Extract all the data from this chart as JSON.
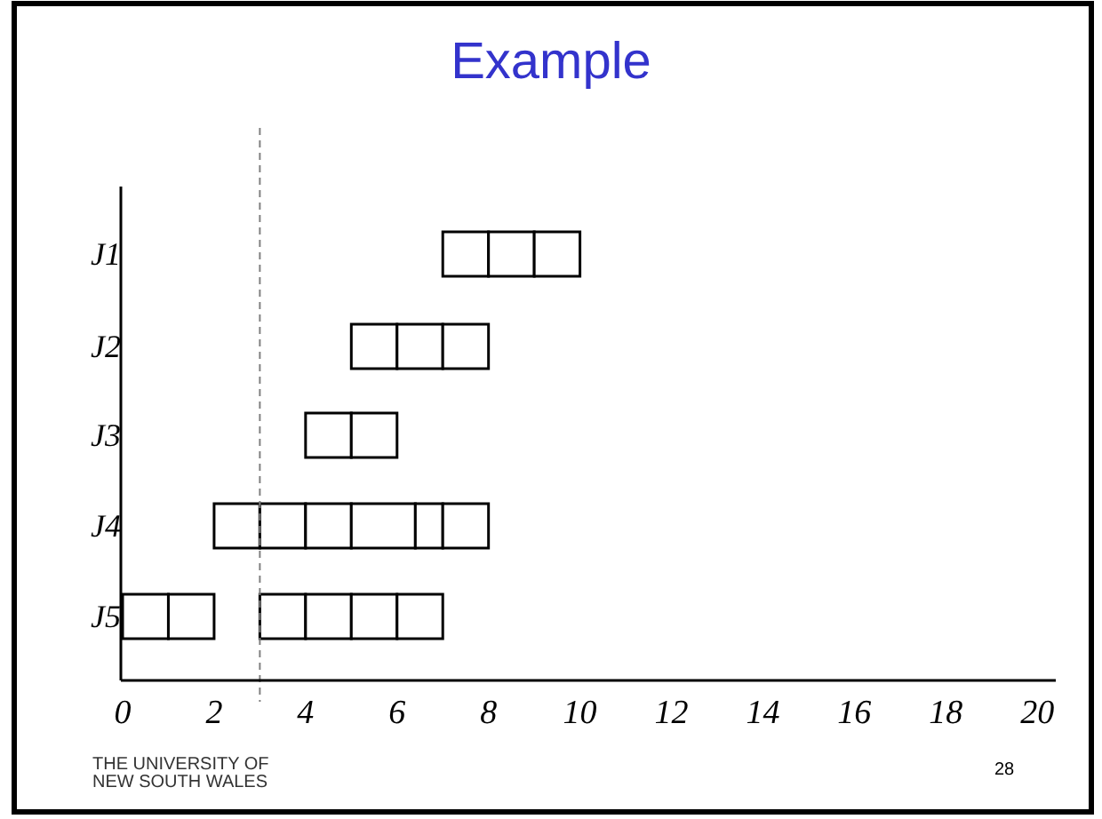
{
  "chart_data": {
    "type": "bar",
    "orientation": "horizontal",
    "title": "Example",
    "categories": [
      "J1",
      "J2",
      "J3",
      "J4",
      "J5"
    ],
    "series": [
      {
        "color": "#ffffff",
        "base": [
          7,
          5,
          4,
          2,
          0
        ],
        "values": [
          1,
          1,
          1,
          1,
          1
        ]
      },
      {
        "color": "#ffffff",
        "base": [
          8,
          6,
          5,
          3,
          1
        ],
        "values": [
          1,
          1,
          1,
          1,
          1
        ]
      },
      {
        "color": "#ffffff",
        "base": [
          9,
          7,
          null,
          4,
          3
        ],
        "values": [
          1,
          1,
          null,
          1,
          1
        ]
      },
      {
        "color": "#ffffff",
        "base": [
          null,
          null,
          null,
          5,
          4
        ],
        "values": [
          null,
          null,
          null,
          1.4,
          1
        ]
      },
      {
        "color": "#ffffff",
        "base": [
          null,
          null,
          null,
          6.4,
          5
        ],
        "values": [
          null,
          null,
          null,
          0.6,
          1
        ]
      },
      {
        "color": "#ffffff",
        "base": [
          null,
          null,
          null,
          7,
          6
        ],
        "values": [
          null,
          null,
          null,
          1,
          1
        ]
      }
    ],
    "xlim": [
      0,
      20.2
    ],
    "xticks": [
      0,
      2,
      4,
      6,
      8,
      10,
      12,
      14,
      16,
      18,
      20
    ],
    "ref_lines": [
      {
        "axis": "x",
        "value": 3,
        "color": "#808080",
        "line_style": "dashed"
      }
    ],
    "annotations": [
      "THE UNIVERSITY OF NEW SOUTH WALES",
      "28"
    ]
  }
}
